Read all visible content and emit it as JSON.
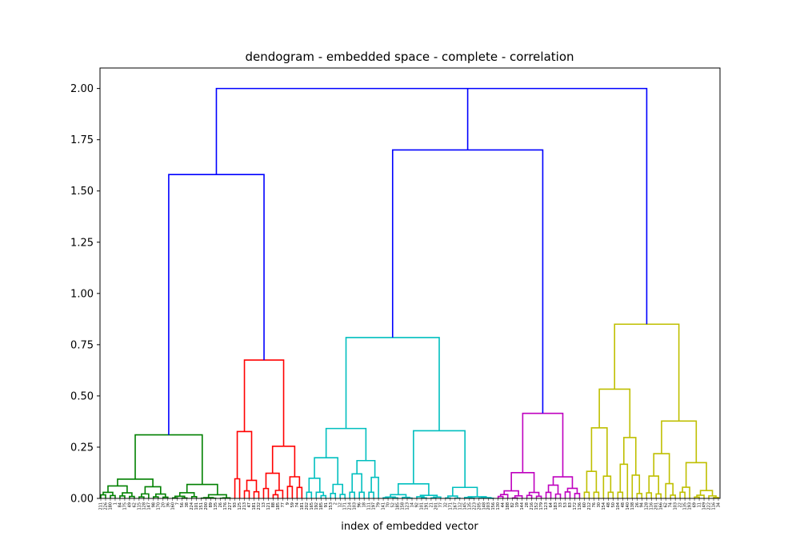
{
  "chart_data": {
    "type": "dendrogram",
    "title": "dendogram - embedded space - complete - correlation",
    "xlabel": "index of embedded vector",
    "ylabel": "",
    "ylim": [
      0,
      2.1
    ],
    "yticks": [
      "0.00",
      "0.25",
      "0.50",
      "0.75",
      "1.00",
      "1.25",
      "1.50",
      "1.75",
      "2.00"
    ],
    "ytick_values": [
      0,
      0.25,
      0.5,
      0.75,
      1.0,
      1.25,
      1.5,
      1.75,
      2.0
    ],
    "leaf_count": 130,
    "leaf_labels": [
      "211",
      "226",
      "180",
      "1",
      "84",
      "175",
      "49",
      "62",
      "115",
      "128",
      "147",
      "98",
      "170",
      "20",
      "36",
      "160",
      "7",
      "56",
      "38",
      "224",
      "101",
      "151",
      "200",
      "89",
      "135",
      "26",
      "176",
      "227",
      "93",
      "125",
      "213",
      "47",
      "181",
      "232",
      "13",
      "121",
      "88",
      "185",
      "77",
      "9",
      "59",
      "74",
      "181",
      "202",
      "165",
      "192",
      "185",
      "91",
      "153",
      "2",
      "12",
      "171",
      "214",
      "103",
      "96",
      "18",
      "111",
      "197",
      "79",
      "141",
      "70",
      "52",
      "185",
      "158",
      "123",
      "14",
      "92",
      "101",
      "191",
      "21",
      "201",
      "77",
      "32",
      "171",
      "167",
      "112",
      "145",
      "135",
      "223",
      "205",
      "148",
      "203",
      "156",
      "130",
      "44",
      "188",
      "82",
      "19",
      "144",
      "28",
      "216",
      "152",
      "179",
      "123",
      "64",
      "183",
      "33",
      "53",
      "83",
      "172",
      "136",
      "60",
      "212",
      "76",
      "30",
      "154",
      "48",
      "50",
      "104",
      "48",
      "140",
      "138",
      "26",
      "94",
      "128",
      "116",
      "201",
      "166",
      "62",
      "74",
      "103",
      "22",
      "135",
      "193",
      "69",
      "11",
      "149",
      "222",
      "116",
      "34"
    ],
    "clusters": [
      {
        "color": "#008000",
        "leaf_range": [
          0,
          27
        ],
        "height": 0.31
      },
      {
        "color": "#ff0000",
        "leaf_range": [
          28,
          42
        ],
        "height": 0.675
      },
      {
        "color": "#00bfbf",
        "leaf_range": [
          43,
          82
        ],
        "height": 0.785
      },
      {
        "color": "#bf00bf",
        "leaf_range": [
          83,
          100
        ],
        "height": 0.415
      },
      {
        "color": "#bfbf00",
        "leaf_range": [
          101,
          129
        ],
        "height": 0.85
      }
    ],
    "top_links": [
      {
        "color": "#0000ff",
        "merge": [
          "green",
          "red"
        ],
        "height": 1.58
      },
      {
        "color": "#0000ff",
        "merge": [
          "cyan",
          "magenta"
        ],
        "height": 1.7
      },
      {
        "color": "#0000ff",
        "merge": [
          "green+red",
          "cyan+magenta",
          "yellow"
        ],
        "height": 2.0
      }
    ]
  }
}
